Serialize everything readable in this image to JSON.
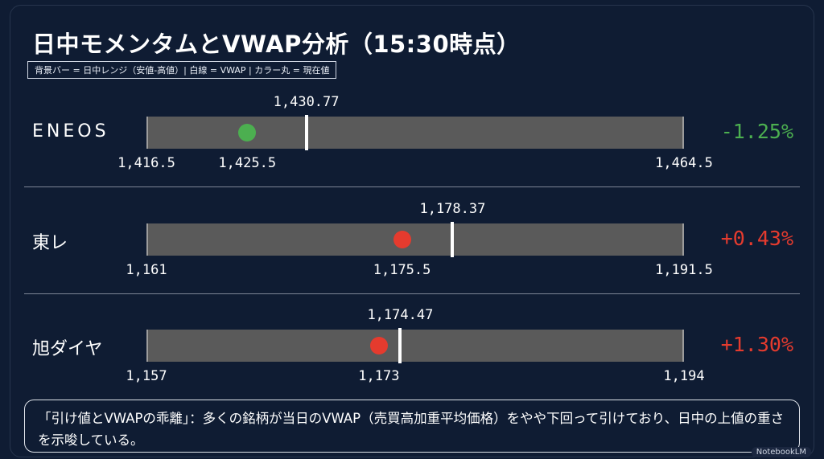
{
  "title": "日中モメンタムとVWAP分析（15:30時点）",
  "legend": "背景バー = 日中レンジ（安値-高値）| 白線 = VWAP | カラー丸 = 現在値",
  "colors": {
    "up": "#e53b2e",
    "down": "#4caf50",
    "track": "#5a5a5a",
    "background": "#0f1c33"
  },
  "chart_data": {
    "type": "range-bar",
    "rows": [
      {
        "name": "ENEOS",
        "low": 1416.5,
        "high": 1464.5,
        "vwap": 1430.77,
        "current": 1425.5,
        "low_label": "1,416.5",
        "high_label": "1,464.5",
        "vwap_label": "1,430.77",
        "current_label": "1,425.5",
        "change": "-1.25%",
        "direction": "down"
      },
      {
        "name": "東レ",
        "low": 1161,
        "high": 1191.5,
        "vwap": 1178.37,
        "current": 1175.5,
        "low_label": "1,161",
        "high_label": "1,191.5",
        "vwap_label": "1,178.37",
        "current_label": "1,175.5",
        "change": "+0.43%",
        "direction": "up"
      },
      {
        "name": "旭ダイヤ",
        "low": 1157,
        "high": 1194,
        "vwap": 1174.47,
        "current": 1173,
        "low_label": "1,157",
        "high_label": "1,194",
        "vwap_label": "1,174.47",
        "current_label": "1,173",
        "change": "+1.30%",
        "direction": "up"
      }
    ]
  },
  "note": "「引け値とVWAPの乖離」：多くの銘柄が当日のVWAP（売買高加重平均価格）をやや下回って引けており、日中の上値の重さを示唆している。",
  "watermark": "NotebookLM"
}
